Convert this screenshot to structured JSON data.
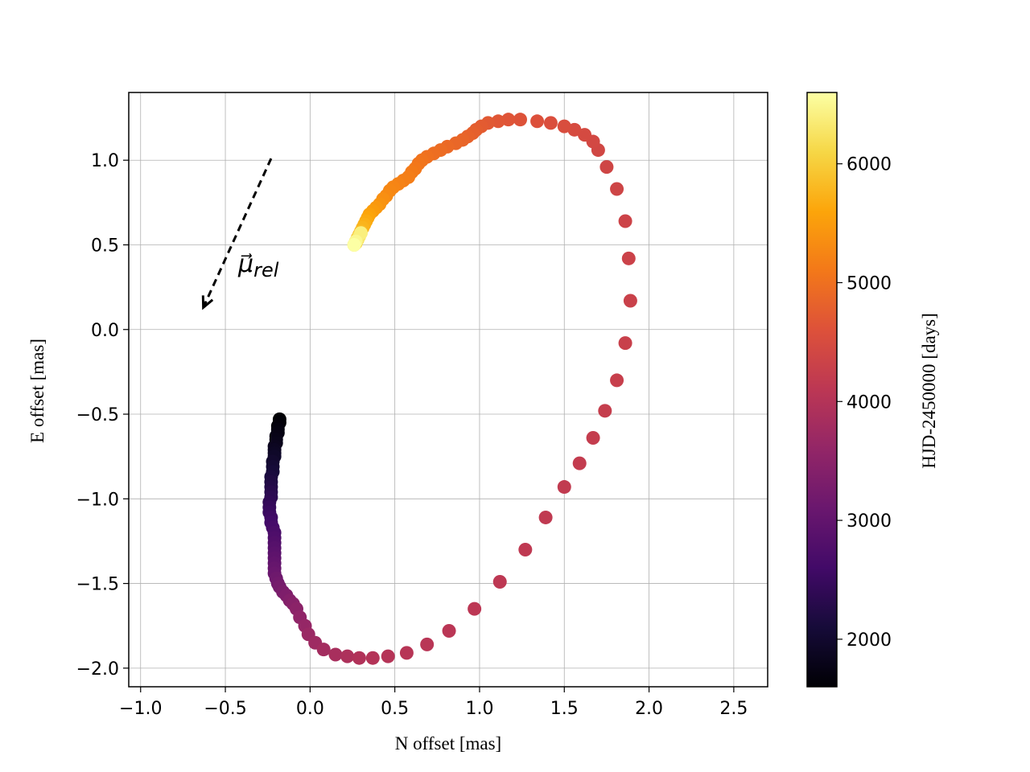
{
  "chart_data": {
    "type": "scatter",
    "title": "",
    "xlabel": "N offset [mas]",
    "ylabel": "E offset [mas]",
    "xlim": [
      -1.07,
      2.7
    ],
    "ylim": [
      -2.11,
      1.4
    ],
    "xticks": [
      -1.0,
      -0.5,
      0.0,
      0.5,
      1.0,
      1.5,
      2.0,
      2.5
    ],
    "xtick_labels": [
      "−1.0",
      "−0.5",
      "0.0",
      "0.5",
      "1.0",
      "1.5",
      "2.0",
      "2.5"
    ],
    "yticks": [
      -2.0,
      -1.5,
      -1.0,
      -0.5,
      0.0,
      0.5,
      1.0
    ],
    "ytick_labels": [
      "−2.0",
      "−1.5",
      "−1.0",
      "−0.5",
      "0.0",
      "0.5",
      "1.0"
    ],
    "grid": true,
    "colorbar": {
      "label": "HJD-2450000 [days]",
      "colormap": "inferno",
      "range": [
        1600,
        6600
      ],
      "ticks": [
        2000,
        3000,
        4000,
        5000,
        6000
      ],
      "tick_labels": [
        "2000",
        "3000",
        "4000",
        "5000",
        "6000"
      ]
    },
    "annotation": {
      "text": "μ⃗",
      "subscript": "rel",
      "arrow_from": [
        -0.23,
        1.01
      ],
      "arrow_to": [
        -0.63,
        0.13
      ],
      "style": "dashed"
    },
    "points": [
      {
        "x": -0.18,
        "y": -0.53,
        "t": 1600
      },
      {
        "x": -0.18,
        "y": -0.55,
        "t": 1630
      },
      {
        "x": -0.19,
        "y": -0.57,
        "t": 1660
      },
      {
        "x": -0.19,
        "y": -0.59,
        "t": 1690
      },
      {
        "x": -0.19,
        "y": -0.61,
        "t": 1720
      },
      {
        "x": -0.2,
        "y": -0.63,
        "t": 1750
      },
      {
        "x": -0.2,
        "y": -0.65,
        "t": 1780
      },
      {
        "x": -0.2,
        "y": -0.67,
        "t": 1810
      },
      {
        "x": -0.21,
        "y": -0.69,
        "t": 1840
      },
      {
        "x": -0.21,
        "y": -0.71,
        "t": 1870
      },
      {
        "x": -0.21,
        "y": -0.73,
        "t": 1900
      },
      {
        "x": -0.21,
        "y": -0.75,
        "t": 1950
      },
      {
        "x": -0.22,
        "y": -0.78,
        "t": 2000
      },
      {
        "x": -0.22,
        "y": -0.81,
        "t": 2050
      },
      {
        "x": -0.22,
        "y": -0.84,
        "t": 2100
      },
      {
        "x": -0.23,
        "y": -0.87,
        "t": 2150
      },
      {
        "x": -0.23,
        "y": -0.9,
        "t": 2200
      },
      {
        "x": -0.23,
        "y": -0.93,
        "t": 2250
      },
      {
        "x": -0.23,
        "y": -0.96,
        "t": 2300
      },
      {
        "x": -0.23,
        "y": -0.99,
        "t": 2350
      },
      {
        "x": -0.24,
        "y": -1.02,
        "t": 2400
      },
      {
        "x": -0.24,
        "y": -1.05,
        "t": 2450
      },
      {
        "x": -0.24,
        "y": -1.08,
        "t": 2500
      },
      {
        "x": -0.23,
        "y": -1.11,
        "t": 2550
      },
      {
        "x": -0.23,
        "y": -1.14,
        "t": 2600
      },
      {
        "x": -0.22,
        "y": -1.17,
        "t": 2650
      },
      {
        "x": -0.21,
        "y": -1.2,
        "t": 2700
      },
      {
        "x": -0.21,
        "y": -1.23,
        "t": 2750
      },
      {
        "x": -0.21,
        "y": -1.26,
        "t": 2800
      },
      {
        "x": -0.21,
        "y": -1.29,
        "t": 2850
      },
      {
        "x": -0.21,
        "y": -1.32,
        "t": 2900
      },
      {
        "x": -0.21,
        "y": -1.35,
        "t": 2950
      },
      {
        "x": -0.21,
        "y": -1.38,
        "t": 3000
      },
      {
        "x": -0.21,
        "y": -1.41,
        "t": 3050
      },
      {
        "x": -0.21,
        "y": -1.44,
        "t": 3100
      },
      {
        "x": -0.2,
        "y": -1.47,
        "t": 3150
      },
      {
        "x": -0.19,
        "y": -1.5,
        "t": 3200
      },
      {
        "x": -0.18,
        "y": -1.52,
        "t": 3250
      },
      {
        "x": -0.16,
        "y": -1.55,
        "t": 3300
      },
      {
        "x": -0.14,
        "y": -1.57,
        "t": 3350
      },
      {
        "x": -0.12,
        "y": -1.6,
        "t": 3400
      },
      {
        "x": -0.1,
        "y": -1.62,
        "t": 3450
      },
      {
        "x": -0.08,
        "y": -1.65,
        "t": 3500
      },
      {
        "x": -0.06,
        "y": -1.7,
        "t": 3560
      },
      {
        "x": -0.03,
        "y": -1.75,
        "t": 3620
      },
      {
        "x": -0.01,
        "y": -1.8,
        "t": 3680
      },
      {
        "x": 0.03,
        "y": -1.85,
        "t": 3740
      },
      {
        "x": 0.08,
        "y": -1.89,
        "t": 3800
      },
      {
        "x": 0.15,
        "y": -1.92,
        "t": 3860
      },
      {
        "x": 0.22,
        "y": -1.93,
        "t": 3920
      },
      {
        "x": 0.29,
        "y": -1.94,
        "t": 3960
      },
      {
        "x": 0.37,
        "y": -1.94,
        "t": 4000
      },
      {
        "x": 0.46,
        "y": -1.93,
        "t": 4020
      },
      {
        "x": 0.57,
        "y": -1.91,
        "t": 4040
      },
      {
        "x": 0.69,
        "y": -1.86,
        "t": 4060
      },
      {
        "x": 0.82,
        "y": -1.78,
        "t": 4080
      },
      {
        "x": 0.97,
        "y": -1.65,
        "t": 4100
      },
      {
        "x": 1.12,
        "y": -1.49,
        "t": 4120
      },
      {
        "x": 1.27,
        "y": -1.3,
        "t": 4140
      },
      {
        "x": 1.39,
        "y": -1.11,
        "t": 4160
      },
      {
        "x": 1.5,
        "y": -0.93,
        "t": 4180
      },
      {
        "x": 1.59,
        "y": -0.79,
        "t": 4200
      },
      {
        "x": 1.67,
        "y": -0.64,
        "t": 4220
      },
      {
        "x": 1.74,
        "y": -0.48,
        "t": 4240
      },
      {
        "x": 1.81,
        "y": -0.3,
        "t": 4260
      },
      {
        "x": 1.86,
        "y": -0.08,
        "t": 4280
      },
      {
        "x": 1.89,
        "y": 0.17,
        "t": 4300
      },
      {
        "x": 1.88,
        "y": 0.42,
        "t": 4320
      },
      {
        "x": 1.86,
        "y": 0.64,
        "t": 4340
      },
      {
        "x": 1.81,
        "y": 0.83,
        "t": 4360
      },
      {
        "x": 1.75,
        "y": 0.96,
        "t": 4380
      },
      {
        "x": 1.7,
        "y": 1.06,
        "t": 4400
      },
      {
        "x": 1.67,
        "y": 1.11,
        "t": 4430
      },
      {
        "x": 1.62,
        "y": 1.15,
        "t": 4460
      },
      {
        "x": 1.56,
        "y": 1.18,
        "t": 4490
      },
      {
        "x": 1.5,
        "y": 1.2,
        "t": 4520
      },
      {
        "x": 1.42,
        "y": 1.22,
        "t": 4550
      },
      {
        "x": 1.34,
        "y": 1.23,
        "t": 4580
      },
      {
        "x": 1.24,
        "y": 1.24,
        "t": 4610
      },
      {
        "x": 1.17,
        "y": 1.24,
        "t": 4640
      },
      {
        "x": 1.11,
        "y": 1.23,
        "t": 4670
      },
      {
        "x": 1.05,
        "y": 1.22,
        "t": 4700
      },
      {
        "x": 1.01,
        "y": 1.2,
        "t": 4730
      },
      {
        "x": 0.98,
        "y": 1.18,
        "t": 4760
      },
      {
        "x": 0.96,
        "y": 1.16,
        "t": 4790
      },
      {
        "x": 0.93,
        "y": 1.14,
        "t": 4820
      },
      {
        "x": 0.9,
        "y": 1.12,
        "t": 4850
      },
      {
        "x": 0.86,
        "y": 1.1,
        "t": 4880
      },
      {
        "x": 0.81,
        "y": 1.08,
        "t": 4910
      },
      {
        "x": 0.77,
        "y": 1.06,
        "t": 4940
      },
      {
        "x": 0.73,
        "y": 1.04,
        "t": 4970
      },
      {
        "x": 0.69,
        "y": 1.02,
        "t": 5000
      },
      {
        "x": 0.66,
        "y": 1.0,
        "t": 5030
      },
      {
        "x": 0.64,
        "y": 0.98,
        "t": 5060
      },
      {
        "x": 0.62,
        "y": 0.95,
        "t": 5090
      },
      {
        "x": 0.6,
        "y": 0.93,
        "t": 5120
      },
      {
        "x": 0.58,
        "y": 0.9,
        "t": 5150
      },
      {
        "x": 0.55,
        "y": 0.88,
        "t": 5180
      },
      {
        "x": 0.52,
        "y": 0.86,
        "t": 5210
      },
      {
        "x": 0.49,
        "y": 0.84,
        "t": 5240
      },
      {
        "x": 0.47,
        "y": 0.82,
        "t": 5270
      },
      {
        "x": 0.45,
        "y": 0.79,
        "t": 5300
      },
      {
        "x": 0.43,
        "y": 0.77,
        "t": 5350
      },
      {
        "x": 0.41,
        "y": 0.74,
        "t": 5400
      },
      {
        "x": 0.39,
        "y": 0.72,
        "t": 5450
      },
      {
        "x": 0.37,
        "y": 0.7,
        "t": 5500
      },
      {
        "x": 0.35,
        "y": 0.68,
        "t": 5550
      },
      {
        "x": 0.34,
        "y": 0.66,
        "t": 5600
      },
      {
        "x": 0.33,
        "y": 0.64,
        "t": 5650
      },
      {
        "x": 0.32,
        "y": 0.62,
        "t": 5700
      },
      {
        "x": 0.31,
        "y": 0.6,
        "t": 5750
      },
      {
        "x": 0.3,
        "y": 0.58,
        "t": 5800
      },
      {
        "x": 0.29,
        "y": 0.56,
        "t": 5850
      },
      {
        "x": 0.28,
        "y": 0.54,
        "t": 5900
      },
      {
        "x": 0.27,
        "y": 0.52,
        "t": 5950
      },
      {
        "x": 0.26,
        "y": 0.5,
        "t": 6000
      },
      {
        "x": 0.27,
        "y": 0.51,
        "t": 6100
      },
      {
        "x": 0.28,
        "y": 0.53,
        "t": 6200
      },
      {
        "x": 0.29,
        "y": 0.55,
        "t": 6300
      },
      {
        "x": 0.3,
        "y": 0.57,
        "t": 6400
      },
      {
        "x": 0.27,
        "y": 0.52,
        "t": 6500
      },
      {
        "x": 0.26,
        "y": 0.5,
        "t": 6600
      }
    ]
  }
}
